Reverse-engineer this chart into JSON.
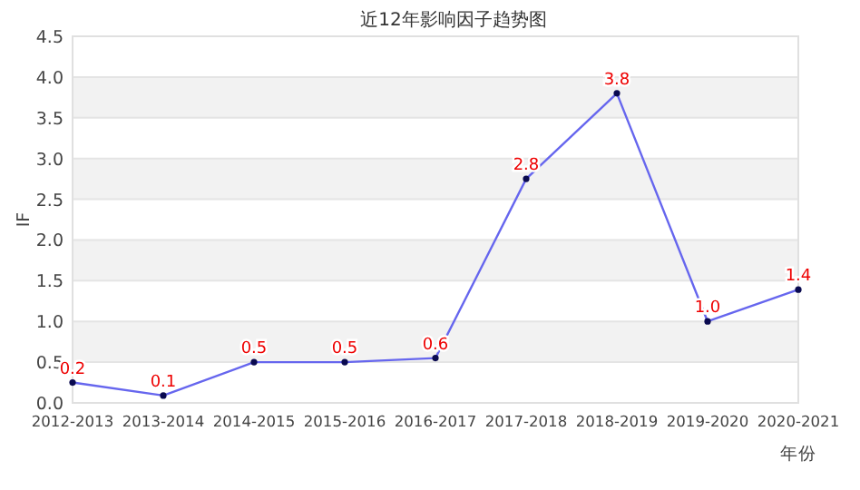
{
  "chart_data": {
    "type": "line",
    "title": "近12年影响因子趋势图",
    "xlabel": "年份",
    "ylabel": "IF",
    "categories": [
      "2012-2013",
      "2013-2014",
      "2014-2015",
      "2015-2016",
      "2016-2017",
      "2017-2018",
      "2018-2019",
      "2019-2020",
      "2020-2021"
    ],
    "series": [
      {
        "color": "#6666ee",
        "values": [
          0.25,
          0.09,
          0.5,
          0.5,
          0.55,
          2.75,
          3.8,
          1.0,
          1.39
        ],
        "value_labels": [
          "0.2",
          "0.1",
          "0.5",
          "0.5",
          "0.6",
          "2.8",
          "3.8",
          "1.0",
          "1.4"
        ]
      }
    ],
    "ylim": [
      0,
      4.5
    ],
    "yticks": [
      {
        "value": 0,
        "label": "0.0"
      },
      0.5,
      {
        "value": 1,
        "label": "1.0"
      },
      1.5,
      {
        "value": 2,
        "label": "2.0"
      },
      2.5,
      {
        "value": 3,
        "label": "3.0"
      },
      3.5,
      {
        "value": 4,
        "label": "4.0"
      },
      4.5
    ],
    "grid": "y",
    "marker": "circle",
    "line_style": "solid"
  }
}
